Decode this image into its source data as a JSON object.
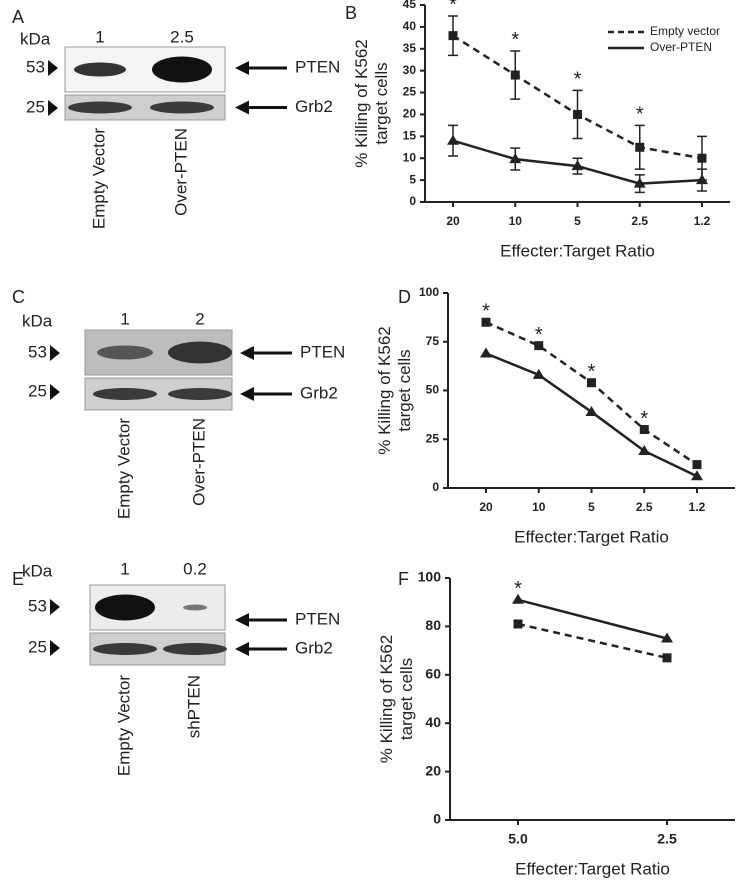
{
  "panel_labels": [
    "A",
    "B",
    "C",
    "D",
    "E",
    "F"
  ],
  "blots": [
    {
      "unit": "kDa",
      "lanes": [
        "1",
        "2.5"
      ],
      "markers": [
        "53",
        "25"
      ],
      "bands": [
        "PTEN",
        "Grb2"
      ],
      "samples": [
        "Empty Vector",
        "Over-PTEN"
      ]
    },
    {
      "unit": "kDa",
      "lanes": [
        "1",
        "2"
      ],
      "markers": [
        "53",
        "25"
      ],
      "bands": [
        "PTEN",
        "Grb2"
      ],
      "samples": [
        "Empty Vector",
        "Over-PTEN"
      ]
    },
    {
      "unit": "kDa",
      "lanes": [
        "1",
        "0.2"
      ],
      "markers": [
        "53",
        "25"
      ],
      "bands": [
        "PTEN",
        "Grb2"
      ],
      "samples": [
        "Empty Vector",
        "shPTEN"
      ]
    }
  ],
  "chart_data": [
    {
      "type": "line",
      "ylabel": [
        "% Killing of K562",
        "target cells"
      ],
      "xlabel": "Effecter:Target Ratio",
      "categories": [
        "20",
        "10",
        "5",
        "2.5",
        "1.2"
      ],
      "ylim": [
        0,
        45
      ],
      "yticks": [
        0,
        5,
        10,
        15,
        20,
        25,
        30,
        35,
        40,
        45
      ],
      "legend": "top-right",
      "significance": [
        "*",
        "*",
        "*",
        "*",
        null
      ],
      "series": [
        {
          "name": "Empty vector",
          "color": "#222222",
          "dashed": true,
          "marker": "square",
          "values": [
            38,
            29,
            20,
            12.5,
            10
          ],
          "errors": [
            4.5,
            5.5,
            5.5,
            5,
            5
          ]
        },
        {
          "name": "Over-PTEN",
          "color": "#222222",
          "dashed": false,
          "marker": "triangle",
          "values": [
            14,
            9.8,
            8.2,
            4.2,
            5
          ],
          "errors": [
            3.5,
            2.5,
            1.8,
            2,
            2.5
          ]
        }
      ]
    },
    {
      "type": "line",
      "ylabel": [
        "% Killing of K562",
        "target cells"
      ],
      "xlabel": "Effecter:Target Ratio",
      "categories": [
        "20",
        "10",
        "5",
        "2.5",
        "1.2"
      ],
      "ylim": [
        0,
        100
      ],
      "yticks": [
        0,
        25,
        50,
        75,
        100
      ],
      "significance": [
        "*",
        "*",
        "*",
        "*",
        null
      ],
      "series": [
        {
          "color": "#222222",
          "dashed": true,
          "marker": "square",
          "values": [
            85,
            73,
            54,
            30,
            12
          ]
        },
        {
          "color": "#222222",
          "dashed": false,
          "marker": "triangle",
          "values": [
            69,
            58,
            39,
            19,
            6
          ]
        }
      ]
    },
    {
      "type": "line",
      "ylabel": [
        "% Killing of K562",
        "target cells"
      ],
      "xlabel": "Effecter:Target Ratio",
      "categories": [
        "5.0",
        "2.5"
      ],
      "ylim": [
        0,
        100
      ],
      "yticks": [
        0,
        20,
        40,
        60,
        80,
        100
      ],
      "significance": [
        "*",
        null
      ],
      "series": [
        {
          "color": "#222222",
          "dashed": true,
          "marker": "square",
          "values": [
            81,
            67
          ]
        },
        {
          "color": "#222222",
          "dashed": false,
          "marker": "triangle",
          "values": [
            91,
            75
          ]
        }
      ]
    }
  ]
}
